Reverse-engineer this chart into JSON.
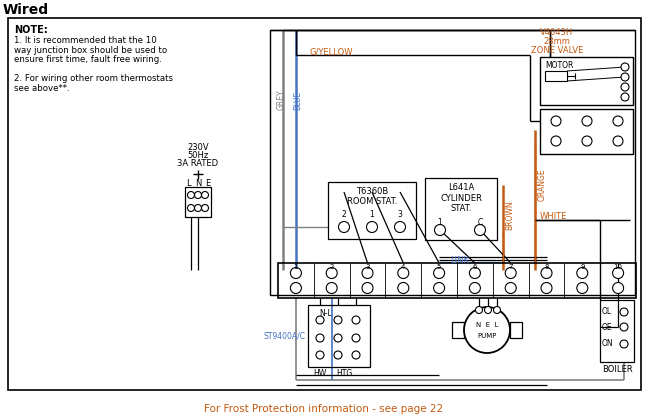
{
  "title": "Wired",
  "bg": "#ffffff",
  "black": "#000000",
  "blue_c": "#4472c4",
  "orange_c": "#c55a11",
  "grey_c": "#808080",
  "note_lines": [
    "NOTE:",
    "1. It is recommended that the 10",
    "way junction box should be used to",
    "ensure first time, fault free wiring.",
    "",
    "2. For wiring other room thermostats",
    "see above**."
  ],
  "footer": "For Frost Protection information - see page 22"
}
